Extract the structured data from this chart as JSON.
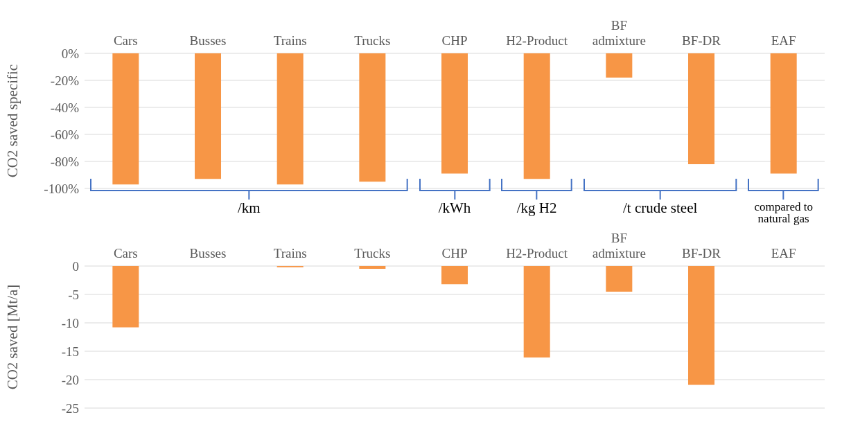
{
  "chart_data": [
    {
      "type": "bar",
      "ylabel": "CO2 saved specific",
      "categories": [
        "Cars",
        "Busses",
        "Trains",
        "Trucks",
        "CHP",
        "H2-Product",
        "BF admixture",
        "BF-DR",
        "EAF"
      ],
      "series": [
        {
          "color": "#f79646",
          "values": [
            -97,
            -93,
            -97,
            -95,
            -89,
            -93,
            -18,
            -82,
            -89
          ]
        }
      ],
      "ylim": [
        -100,
        0
      ],
      "yticks": [
        {
          "value": -100,
          "label": "-100%"
        },
        {
          "value": -80,
          "label": "-80%"
        },
        {
          "value": -60,
          "label": "-60%"
        },
        {
          "value": -40,
          "label": "-40%"
        },
        {
          "value": -20,
          "label": "-20%"
        },
        {
          "value": 0,
          "label": "0%"
        }
      ],
      "grid": "y",
      "legend": false,
      "annotations": [
        "/km",
        "/kWh",
        "/kg H2",
        "/t crude steel",
        "compared to natural gas"
      ]
    },
    {
      "type": "bar",
      "ylabel": "CO2 saved [Mt/a]",
      "categories": [
        "Cars",
        "Busses",
        "Trains",
        "Trucks",
        "CHP",
        "H2-Product",
        "BF admixture",
        "BF-DR",
        "EAF"
      ],
      "series": [
        {
          "color": "#f79646",
          "values": [
            -10.8,
            0,
            -0.2,
            -0.5,
            -3.2,
            -16.1,
            -4.5,
            -20.9,
            0
          ]
        }
      ],
      "ylim": [
        -25,
        0
      ],
      "yticks": [
        -25,
        -20,
        -15,
        -10,
        -5,
        0
      ],
      "grid": "y",
      "legend": false
    }
  ]
}
